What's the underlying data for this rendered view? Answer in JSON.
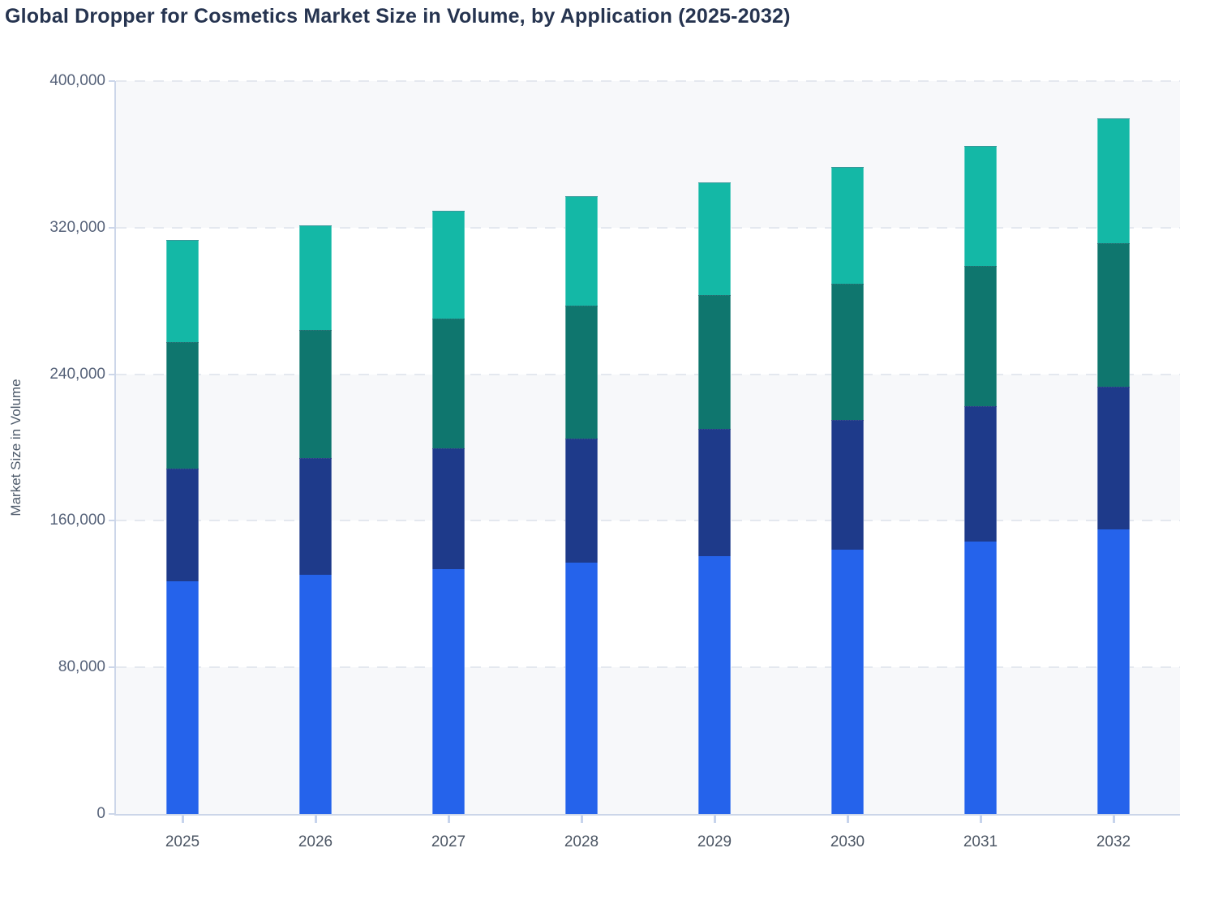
{
  "title": "Global Dropper for Cosmetics Market Size in Volume, by Application (2025-2032)",
  "y_axis": {
    "label": "Market Size in Volume",
    "tick_labels": [
      "0",
      "80,000",
      "160,000",
      "240,000",
      "320,000",
      "400,000"
    ],
    "max": 400000
  },
  "x_axis": {
    "tick_labels": [
      "2025",
      "2026",
      "2027",
      "2028",
      "2029",
      "2030",
      "2031",
      "2032"
    ]
  },
  "colors": {
    "title_text": "#263450",
    "axis_line": "#ccd6e9",
    "gridline": "#e4e8ef",
    "band_shade": "#f7f8fa",
    "band_plain": "#ffffff",
    "segment_blue": "#2563eb",
    "segment_navy": "#1e3a8a",
    "segment_dark_teal": "#0f766e",
    "segment_teal": "#14b8a6"
  },
  "chart_data": {
    "type": "bar",
    "stacked": true,
    "title": "Global Dropper for Cosmetics Market Size in Volume, by Application (2025-2032)",
    "xlabel": "",
    "ylabel": "Market Size in Volume",
    "ylim": [
      0,
      400000
    ],
    "grid": "horizontal-dashed",
    "legend_position": "none",
    "categories": [
      "2025",
      "2026",
      "2027",
      "2028",
      "2029",
      "2030",
      "2031",
      "2032"
    ],
    "series": [
      {
        "name": "application-1-bottom-blue",
        "color": "#2563eb",
        "values": [
          127200,
          130600,
          133800,
          137200,
          140700,
          144400,
          148600,
          155200
        ]
      },
      {
        "name": "application-2-navy",
        "color": "#1e3a8a",
        "values": [
          61000,
          63000,
          65400,
          67100,
          69200,
          70100,
          73500,
          77500
        ]
      },
      {
        "name": "application-3-dark-teal",
        "color": "#0f766e",
        "values": [
          68400,
          69600,
          70300,
          72200,
          72600,
          74200,
          76100,
          78100
        ]
      },
      {
        "name": "application-4-teal",
        "color": "#14b8a6",
        "values": [
          55300,
          56600,
          58200,
          59400,
          60900,
          63200,
          65000,
          67600
        ]
      }
    ],
    "totals": [
      311900,
      319800,
      327700,
      335900,
      343400,
      351900,
      363200,
      378400
    ]
  }
}
